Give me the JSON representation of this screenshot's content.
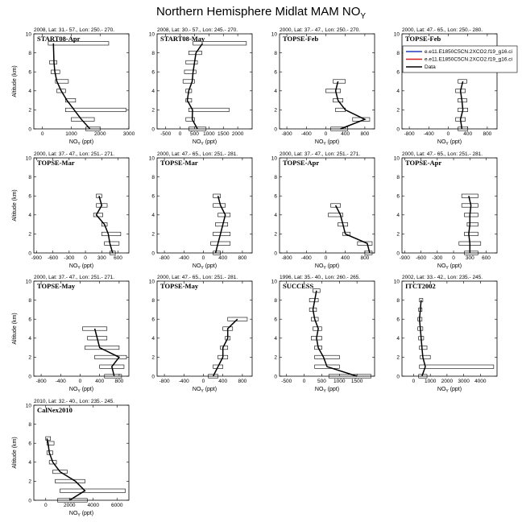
{
  "figure": {
    "title_main": "Northern Hemisphere Midlat MAM NO",
    "title_sub": "Y"
  },
  "legend": {
    "entries": [
      {
        "label": "e.e11.E1850C5CN.2XCO2.f19_g16.ci",
        "color": "#1f3fbf"
      },
      {
        "label": "e.e11.E1850C5CN.2XCO2.f19_g16.ci",
        "color": "#d11f1f"
      },
      {
        "label": "Data",
        "color": "#000000"
      }
    ]
  },
  "axis_text": {
    "ylabel": "Altitude (km)",
    "xlabel_main": "NO",
    "xlabel_sub": "Y",
    "xlabel_unit": " (ppt)"
  },
  "chart_data": [
    {
      "type": "line",
      "campaign": "START08-Apr",
      "header": "2008, Lat: 31.- 57., Lon: 250.- 270.",
      "xlim": [
        -300,
        3000
      ],
      "ylim": [
        0,
        10
      ],
      "xticks": [
        0,
        1000,
        2000,
        3000
      ],
      "yticks": [
        0,
        2,
        4,
        6,
        8,
        10
      ],
      "x": [
        1650,
        1350,
        1100,
        850,
        650,
        500,
        430,
        400,
        380
      ],
      "y": [
        0,
        1,
        2,
        3,
        4,
        5,
        6,
        7,
        9
      ],
      "xerr": [
        [
          1500,
          2000
        ],
        [
          1000,
          1800
        ],
        [
          800,
          2900
        ],
        [
          800,
          1150
        ],
        [
          500,
          800
        ],
        [
          450,
          900
        ],
        [
          300,
          600
        ],
        [
          250,
          500
        ],
        [
          200,
          2300
        ]
      ]
    },
    {
      "type": "line",
      "campaign": "START08-May",
      "header": "2008, Lat: 30.- 57., Lon: 245.- 270.",
      "xlim": [
        -800,
        2500
      ],
      "ylim": [
        0,
        10
      ],
      "xticks": [
        -500,
        0,
        500,
        1000,
        1500,
        2000
      ],
      "yticks": [
        0,
        2,
        4,
        6,
        8,
        10
      ],
      "x": [
        600,
        420,
        430,
        250,
        300,
        420,
        450,
        500,
        550,
        780
      ],
      "y": [
        0,
        1,
        2,
        3,
        4,
        5,
        6,
        7,
        8,
        9
      ],
      "xerr": [
        [
          300,
          900
        ],
        [
          200,
          500
        ],
        [
          300,
          1700
        ],
        [
          200,
          400
        ],
        [
          200,
          400
        ],
        [
          100,
          500
        ],
        [
          150,
          550
        ],
        [
          200,
          600
        ],
        [
          300,
          750
        ],
        [
          450,
          2300
        ]
      ]
    },
    {
      "type": "line",
      "campaign": "TOPSE-Feb",
      "header": "2000, Lat: 37.- 47., Lon: 250.- 270.",
      "xlim": [
        -950,
        1000
      ],
      "ylim": [
        0,
        10
      ],
      "xticks": [
        -800,
        -400,
        0,
        400,
        800
      ],
      "yticks": [
        0,
        2,
        4,
        6,
        8,
        10
      ],
      "x": [
        300,
        800,
        400,
        250,
        200,
        250
      ],
      "y": [
        0,
        1,
        2,
        3,
        4,
        5
      ],
      "xerr": [
        [
          100,
          450
        ],
        [
          550,
          900
        ],
        [
          200,
          400
        ],
        [
          150,
          350
        ],
        [
          0,
          300
        ],
        [
          150,
          400
        ]
      ]
    },
    {
      "type": "line",
      "campaign": "TOPSE-Feb",
      "header": "2000, Lat: 47.- 65., Lon: 250.- 280.",
      "xlim": [
        -950,
        1000
      ],
      "ylim": [
        0,
        10
      ],
      "xticks": [
        -800,
        -400,
        0,
        400,
        800
      ],
      "yticks": [
        0,
        2,
        4,
        6,
        8,
        10
      ],
      "x": [
        280,
        250,
        300,
        280,
        250,
        300
      ],
      "y": [
        0,
        1,
        2,
        3,
        4,
        5
      ],
      "xerr": [
        [
          200,
          400
        ],
        [
          150,
          350
        ],
        [
          200,
          400
        ],
        [
          200,
          380
        ],
        [
          150,
          350
        ],
        [
          200,
          380
        ]
      ]
    },
    {
      "type": "line",
      "campaign": "TOPSE-Mar",
      "header": "2000, Lat: 37.- 47., Lon: 251.- 271.",
      "xlim": [
        -950,
        800
      ],
      "ylim": [
        0,
        10
      ],
      "xticks": [
        -900,
        -600,
        -300,
        0,
        300,
        600
      ],
      "yticks": [
        0,
        2,
        4,
        6,
        8,
        10
      ],
      "x": [
        500,
        450,
        420,
        350,
        200,
        300,
        250
      ],
      "y": [
        0,
        1,
        2,
        3,
        4,
        5,
        6
      ],
      "xerr": [
        [
          450,
          550
        ],
        [
          350,
          620
        ],
        [
          300,
          650
        ],
        [
          300,
          400
        ],
        [
          150,
          320
        ],
        [
          200,
          400
        ],
        [
          200,
          300
        ]
      ]
    },
    {
      "type": "line",
      "campaign": "TOPSE-Mar",
      "header": "2000, Lat: 47.- 65., Lon: 251.- 281.",
      "xlim": [
        -950,
        1000
      ],
      "ylim": [
        0,
        10
      ],
      "xticks": [
        -800,
        -400,
        0,
        400,
        800
      ],
      "yticks": [
        0,
        2,
        4,
        6,
        8,
        10
      ],
      "x": [
        250,
        300,
        350,
        400,
        450,
        350,
        300
      ],
      "y": [
        0,
        1,
        2,
        3,
        4,
        5,
        6
      ],
      "xerr": [
        [
          200,
          350
        ],
        [
          150,
          550
        ],
        [
          200,
          550
        ],
        [
          250,
          500
        ],
        [
          300,
          550
        ],
        [
          200,
          450
        ],
        [
          200,
          350
        ]
      ]
    },
    {
      "type": "line",
      "campaign": "TOPSE-Apr",
      "header": "2000, Lat: 37.- 47., Lon: 251.- 271.",
      "xlim": [
        -950,
        1000
      ],
      "ylim": [
        0,
        10
      ],
      "xticks": [
        -800,
        -400,
        0,
        400,
        800
      ],
      "yticks": [
        0,
        2,
        4,
        6,
        8,
        10
      ],
      "x": [
        900,
        850,
        400,
        350,
        300,
        200
      ],
      "y": [
        0,
        1,
        2,
        3,
        4,
        5
      ],
      "xerr": [
        [
          800,
          950
        ],
        [
          650,
          950
        ],
        [
          350,
          500
        ],
        [
          250,
          450
        ],
        [
          50,
          350
        ],
        [
          100,
          300
        ]
      ]
    },
    {
      "type": "line",
      "campaign": "TOPSE-Apr",
      "header": "2000, Lat: 47.- 65., Lon: 251.- 281.",
      "xlim": [
        -950,
        800
      ],
      "ylim": [
        0,
        10
      ],
      "xticks": [
        -900,
        -600,
        -300,
        0,
        300,
        600
      ],
      "yticks": [
        0,
        2,
        4,
        6,
        8,
        10
      ],
      "x": [
        300,
        300,
        280,
        300,
        300,
        320,
        280
      ],
      "y": [
        0,
        1,
        2,
        3,
        4,
        5,
        6
      ],
      "xerr": [
        [
          200,
          450
        ],
        [
          100,
          500
        ],
        [
          200,
          450
        ],
        [
          250,
          450
        ],
        [
          200,
          450
        ],
        [
          150,
          450
        ],
        [
          150,
          450
        ]
      ]
    },
    {
      "type": "line",
      "campaign": "TOPSE-May",
      "header": "2000, Lat: 37.- 47., Lon: 251.- 271.",
      "xlim": [
        -950,
        1000
      ],
      "ylim": [
        0,
        10
      ],
      "xticks": [
        -800,
        -400,
        0,
        400,
        800
      ],
      "yticks": [
        0,
        2,
        4,
        6,
        8,
        10
      ],
      "x": [
        700,
        650,
        800,
        400,
        350,
        300
      ],
      "y": [
        0,
        1,
        2,
        3,
        4,
        5
      ],
      "xerr": [
        [
          500,
          850
        ],
        [
          400,
          900
        ],
        [
          300,
          950
        ],
        [
          100,
          800
        ],
        [
          150,
          550
        ],
        [
          50,
          550
        ]
      ]
    },
    {
      "type": "line",
      "campaign": "TOPSE-May",
      "header": "2000, Lat: 47.- 65., Lon: 251.- 281.",
      "xlim": [
        -950,
        1000
      ],
      "ylim": [
        0,
        10
      ],
      "xticks": [
        -800,
        -400,
        0,
        400,
        800
      ],
      "yticks": [
        0,
        2,
        4,
        6,
        8,
        10
      ],
      "x": [
        200,
        300,
        400,
        400,
        500,
        500,
        700
      ],
      "y": [
        0,
        1,
        2,
        3,
        4,
        5,
        6
      ],
      "xerr": [
        [
          100,
          300
        ],
        [
          200,
          400
        ],
        [
          300,
          500
        ],
        [
          350,
          500
        ],
        [
          450,
          550
        ],
        [
          400,
          600
        ],
        [
          500,
          900
        ]
      ]
    },
    {
      "type": "line",
      "campaign": "SUCCESS",
      "header": "1996, Lat: 35.- 40., Lon: 260.- 265.",
      "xlim": [
        -700,
        2000
      ],
      "ylim": [
        0,
        10
      ],
      "xticks": [
        -500,
        0,
        500,
        1000,
        1500
      ],
      "yticks": [
        0,
        2,
        4,
        6,
        8,
        10
      ],
      "x": [
        1500,
        650,
        550,
        400,
        350,
        400,
        300,
        250,
        300,
        350
      ],
      "y": [
        0,
        1,
        2,
        3,
        4,
        5,
        6,
        7,
        8,
        9
      ],
      "xerr": [
        [
          700,
          1900
        ],
        [
          300,
          1000
        ],
        [
          300,
          1000
        ],
        [
          300,
          500
        ],
        [
          200,
          500
        ],
        [
          250,
          500
        ],
        [
          200,
          400
        ],
        [
          150,
          350
        ],
        [
          150,
          400
        ],
        [
          250,
          450
        ]
      ]
    },
    {
      "type": "line",
      "campaign": "ITCT2002",
      "header": "2002, Lat: 33.- 42., Lon: 235.- 245.",
      "xlim": [
        -700,
        5000
      ],
      "ylim": [
        0,
        10
      ],
      "xticks": [
        0,
        1000,
        2000,
        3000,
        4000
      ],
      "yticks": [
        0,
        2,
        4,
        6,
        8,
        10
      ],
      "x": [
        500,
        700,
        550,
        500,
        450,
        400,
        350,
        400,
        450
      ],
      "y": [
        0,
        1,
        2,
        3,
        4,
        5,
        6,
        7,
        8
      ],
      "xerr": [
        [
          300,
          800
        ],
        [
          350,
          4800
        ],
        [
          400,
          1000
        ],
        [
          350,
          800
        ],
        [
          300,
          600
        ],
        [
          250,
          550
        ],
        [
          250,
          500
        ],
        [
          300,
          500
        ],
        [
          350,
          550
        ]
      ]
    },
    {
      "type": "line",
      "campaign": "CalNex2010",
      "header": "2010, Lat: 32.- 40., Lon: 235.- 245.",
      "xlim": [
        -1000,
        7000
      ],
      "ylim": [
        0,
        10
      ],
      "xticks": [
        0,
        2000,
        4000,
        6000
      ],
      "yticks": [
        0,
        2,
        4,
        6,
        8,
        10
      ],
      "x": [
        2000,
        3300,
        2500,
        1200,
        600,
        300,
        200,
        100
      ],
      "y": [
        0,
        1,
        2,
        3,
        4,
        5,
        6,
        6.5
      ],
      "xerr": [
        [
          1000,
          3500
        ],
        [
          1200,
          6700
        ],
        [
          800,
          3300
        ],
        [
          600,
          1800
        ],
        [
          300,
          900
        ],
        [
          100,
          600
        ],
        [
          100,
          700
        ],
        [
          0,
          400
        ]
      ]
    }
  ]
}
